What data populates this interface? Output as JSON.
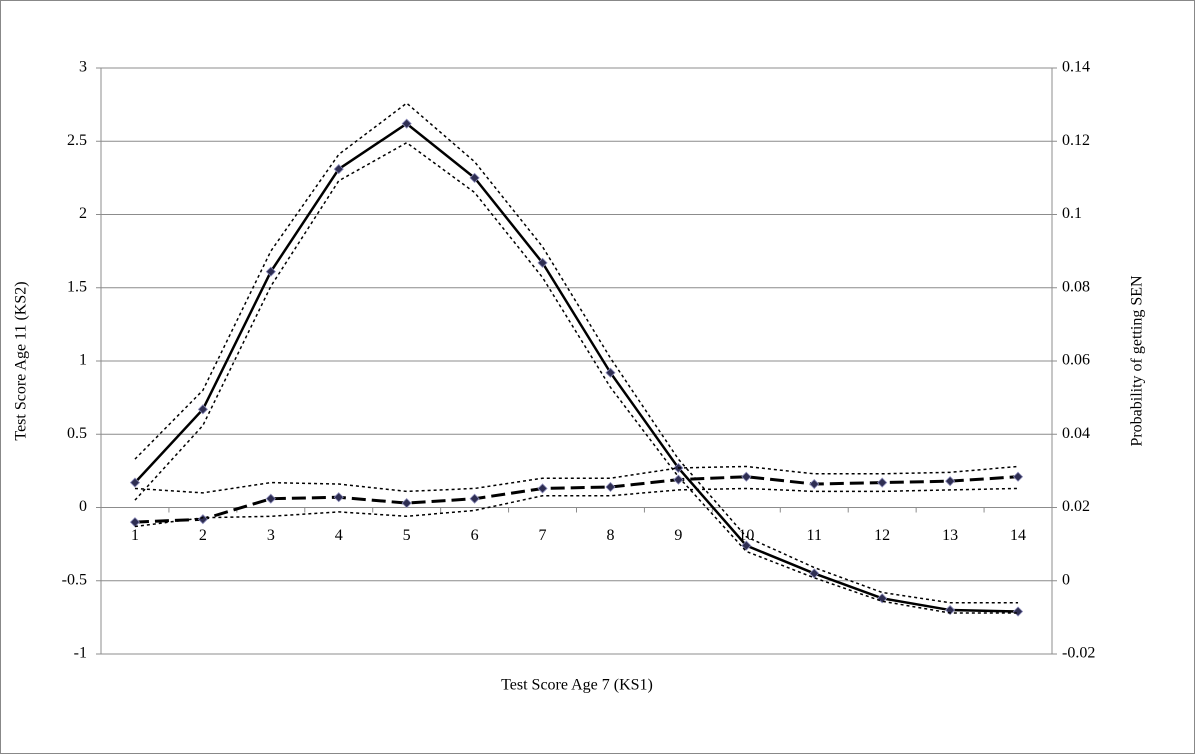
{
  "chart_data": {
    "type": "line",
    "x_label": "Test Score Age 7 (KS1)",
    "y_label": "Test Score Age 11 (KS2)",
    "y2_label": "Probability of getting SEN",
    "categories": [
      "1",
      "2",
      "3",
      "4",
      "5",
      "6",
      "7",
      "8",
      "9",
      "10",
      "11",
      "12",
      "13",
      "14"
    ],
    "ylim": [
      -1,
      3
    ],
    "yticks": [
      -1,
      -0.5,
      0,
      0.5,
      1,
      1.5,
      2,
      2.5,
      3
    ],
    "y2lim": [
      -0.02,
      0.14
    ],
    "y2ticks": [
      -0.02,
      0,
      0.02,
      0.04,
      0.06,
      0.08,
      0.1,
      0.12,
      0.14
    ],
    "grid": true,
    "series": [
      {
        "color": "#000000",
        "line_style": "solid",
        "markers": true,
        "values": [
          0.17,
          0.67,
          1.61,
          2.31,
          2.62,
          2.25,
          1.67,
          0.92,
          0.27,
          -0.26,
          -0.45,
          -0.62,
          -0.7,
          -0.71
        ]
      },
      {
        "color": "#000000",
        "line_style": "dotted",
        "markers": false,
        "values": [
          0.33,
          0.8,
          1.75,
          2.41,
          2.76,
          2.36,
          1.78,
          1.02,
          0.33,
          -0.2,
          -0.41,
          -0.58,
          -0.65,
          -0.65
        ]
      },
      {
        "color": "#000000",
        "line_style": "dotted",
        "markers": false,
        "values": [
          0.05,
          0.56,
          1.51,
          2.23,
          2.49,
          2.15,
          1.57,
          0.82,
          0.21,
          -0.3,
          -0.48,
          -0.64,
          -0.72,
          -0.72
        ]
      },
      {
        "color": "#000000",
        "line_style": "dashed",
        "markers": true,
        "values": [
          -0.1,
          -0.08,
          0.06,
          0.07,
          0.03,
          0.06,
          0.13,
          0.14,
          0.19,
          0.21,
          0.16,
          0.17,
          0.18,
          0.21
        ]
      },
      {
        "color": "#000000",
        "line_style": "dotted",
        "markers": false,
        "values": [
          0.13,
          0.1,
          0.17,
          0.16,
          0.11,
          0.13,
          0.2,
          0.2,
          0.27,
          0.28,
          0.23,
          0.23,
          0.24,
          0.28
        ]
      },
      {
        "color": "#000000",
        "line_style": "dotted",
        "markers": false,
        "values": [
          -0.13,
          -0.07,
          -0.06,
          -0.03,
          -0.06,
          -0.02,
          0.08,
          0.08,
          0.12,
          0.13,
          0.11,
          0.11,
          0.12,
          0.13
        ]
      }
    ]
  }
}
